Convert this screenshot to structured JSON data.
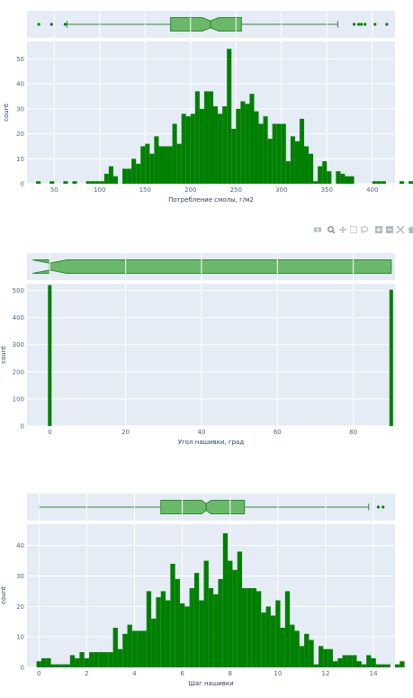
{
  "colors": {
    "bar": "#008000",
    "box_fill": "#6ab86a",
    "box_line": "#2e8b2e",
    "plot_bg": "#e5ecf6",
    "grid": "#ffffff"
  },
  "modebar_icons": [
    "camera-icon",
    "zoom-icon",
    "pan-icon",
    "box-select-icon",
    "lasso-icon",
    "zoom-in-icon",
    "zoom-out-icon",
    "autoscale-icon",
    "reset-axes-icon"
  ],
  "chart_data": [
    {
      "type": "histogram",
      "xlabel": "Потребление смолы, г/м2",
      "ylabel": "count",
      "xlim": [
        20,
        425
      ],
      "ylim": [
        0,
        57
      ],
      "xticks": [
        50,
        100,
        150,
        200,
        250,
        300,
        350,
        400
      ],
      "yticks": [
        0,
        10,
        20,
        30,
        40,
        50
      ],
      "bin_start": 30,
      "bin_width": 5,
      "counts": [
        1,
        0,
        0,
        1,
        0,
        0,
        1,
        0,
        1,
        0,
        0,
        1,
        1,
        1,
        1,
        4,
        7,
        3,
        0,
        6,
        6,
        10,
        8,
        15,
        16,
        12,
        19,
        15,
        15,
        15,
        24,
        16,
        28,
        27,
        28,
        37,
        30,
        37,
        37,
        31,
        28,
        31,
        54,
        22,
        30,
        33,
        32,
        36,
        29,
        24,
        27,
        18,
        24,
        24,
        24,
        9,
        19,
        17,
        26,
        15,
        12,
        1,
        7,
        9,
        5,
        0,
        5,
        4,
        3,
        3,
        0,
        0,
        0,
        0,
        1,
        1,
        1,
        0,
        0,
        0,
        1,
        0,
        1,
        0
      ],
      "box": {
        "q1": 178,
        "median": 222,
        "q3": 256,
        "lower_fence": 64,
        "upper_fence": 362,
        "notch": [
          213,
          231
        ],
        "outliers": [
          33,
          47,
          62,
          380,
          385,
          388,
          392,
          403,
          416
        ]
      },
      "grid": true
    },
    {
      "type": "histogram",
      "xlabel": "Угол нашивки, град",
      "ylabel": "count",
      "xlim": [
        -6,
        91
      ],
      "ylim": [
        0,
        525
      ],
      "xticks": [
        0,
        20,
        40,
        60,
        80
      ],
      "yticks": [
        0,
        100,
        200,
        300,
        400,
        500
      ],
      "bars": [
        {
          "x": 0,
          "count": 520
        },
        {
          "x": 90,
          "count": 503
        }
      ],
      "box": {
        "q1": 0,
        "median": 0,
        "q3": 90,
        "lower_fence": 0,
        "upper_fence": 90,
        "notch": [
          -4.5,
          4.5
        ],
        "outliers": []
      },
      "grid": true
    },
    {
      "type": "histogram",
      "xlabel": "Шаг нашивки",
      "ylabel": "count",
      "xlim": [
        -0.5,
        14.9
      ],
      "ylim": [
        0,
        47
      ],
      "xticks": [
        0,
        2,
        4,
        6,
        8,
        10,
        12,
        14
      ],
      "yticks": [
        0,
        10,
        20,
        30,
        40
      ],
      "bin_start": -0.1,
      "bin_width": 0.2,
      "counts": [
        2,
        3,
        3,
        1,
        1,
        1,
        1,
        4,
        3,
        5,
        3,
        5,
        5,
        5,
        5,
        5,
        13,
        6,
        11,
        14,
        12,
        12,
        12,
        25,
        16,
        23,
        25,
        22,
        34,
        29,
        21,
        20,
        26,
        31,
        22,
        35,
        26,
        24,
        29,
        44,
        35,
        32,
        38,
        26,
        26,
        26,
        25,
        18,
        20,
        17,
        22,
        13,
        25,
        14,
        12,
        7,
        11,
        9,
        1,
        7,
        6,
        6,
        2,
        3,
        4,
        4,
        4,
        2,
        1,
        4,
        3,
        1,
        1,
        1,
        0,
        1,
        2
      ],
      "box": {
        "q1": 5.1,
        "median": 7.0,
        "q3": 8.6,
        "lower_fence": 0,
        "upper_fence": 13.8,
        "notch": [
          6.8,
          7.2
        ],
        "outliers": [
          14.2,
          14.4
        ]
      },
      "grid": true
    }
  ]
}
